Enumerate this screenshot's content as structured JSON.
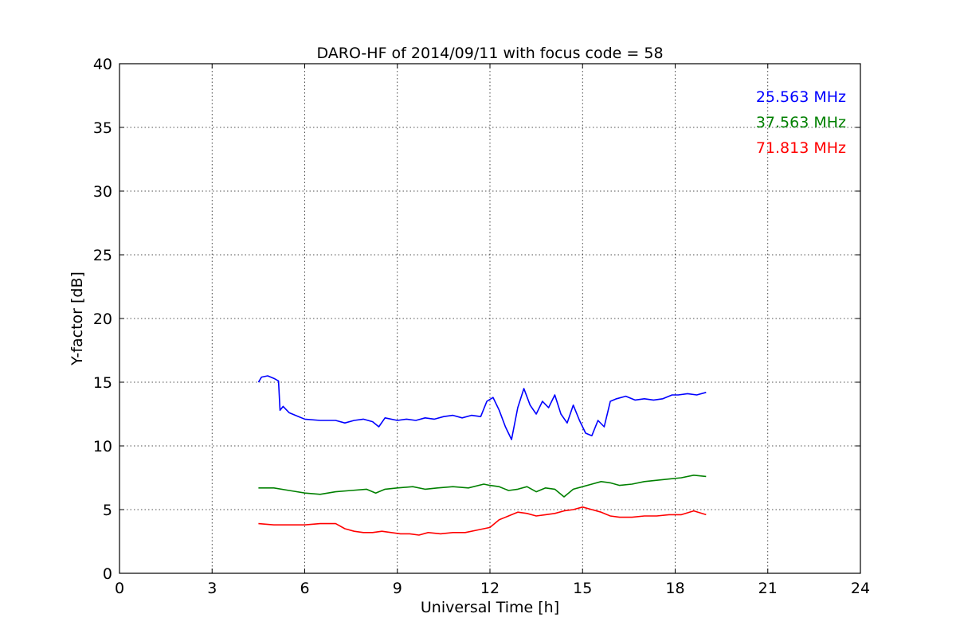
{
  "chart_data": {
    "type": "line",
    "title": "DARO-HF of 2014/09/11 with focus code = 58",
    "xlabel": "Universal Time [h]",
    "ylabel": "Y-factor [dB]",
    "xlim": [
      0,
      24
    ],
    "ylim": [
      0,
      40
    ],
    "xticks": [
      0,
      3,
      6,
      9,
      12,
      15,
      18,
      21,
      24
    ],
    "yticks": [
      0,
      5,
      10,
      15,
      20,
      25,
      30,
      35,
      40
    ],
    "grid": true,
    "legend_position": "top-right",
    "series": [
      {
        "name": "25.563 MHz",
        "color": "#0000ff",
        "x": [
          4.5,
          4.6,
          4.8,
          5.0,
          5.15,
          5.2,
          5.3,
          5.5,
          5.8,
          6.0,
          6.5,
          7.0,
          7.3,
          7.6,
          7.9,
          8.2,
          8.4,
          8.6,
          9.0,
          9.3,
          9.6,
          9.9,
          10.2,
          10.5,
          10.8,
          11.1,
          11.4,
          11.7,
          11.9,
          12.1,
          12.3,
          12.5,
          12.7,
          12.9,
          13.1,
          13.3,
          13.5,
          13.7,
          13.9,
          14.1,
          14.3,
          14.5,
          14.7,
          14.9,
          15.1,
          15.3,
          15.5,
          15.7,
          15.9,
          16.1,
          16.4,
          16.7,
          17.0,
          17.3,
          17.6,
          17.9,
          18.1,
          18.4,
          18.7,
          19.0
        ],
        "y": [
          15.0,
          15.4,
          15.5,
          15.3,
          15.1,
          12.8,
          13.1,
          12.6,
          12.3,
          12.1,
          12.0,
          12.0,
          11.8,
          12.0,
          12.1,
          11.9,
          11.5,
          12.2,
          12.0,
          12.1,
          12.0,
          12.2,
          12.1,
          12.3,
          12.4,
          12.2,
          12.4,
          12.3,
          13.5,
          13.8,
          12.8,
          11.5,
          10.5,
          13.0,
          14.5,
          13.2,
          12.5,
          13.5,
          13.0,
          14.0,
          12.5,
          11.8,
          13.2,
          12.0,
          11.0,
          10.8,
          12.0,
          11.5,
          13.5,
          13.7,
          13.9,
          13.6,
          13.7,
          13.6,
          13.7,
          14.0,
          14.0,
          14.1,
          14.0,
          14.2
        ]
      },
      {
        "name": "37.563 MHz",
        "color": "#008000",
        "x": [
          4.5,
          5.0,
          5.5,
          6.0,
          6.5,
          7.0,
          7.5,
          8.0,
          8.3,
          8.6,
          9.0,
          9.5,
          9.9,
          10.3,
          10.8,
          11.3,
          11.8,
          12.0,
          12.3,
          12.6,
          12.9,
          13.2,
          13.5,
          13.8,
          14.1,
          14.4,
          14.7,
          15.0,
          15.3,
          15.6,
          15.9,
          16.2,
          16.6,
          17.0,
          17.4,
          17.8,
          18.2,
          18.6,
          19.0
        ],
        "y": [
          6.7,
          6.7,
          6.5,
          6.3,
          6.2,
          6.4,
          6.5,
          6.6,
          6.3,
          6.6,
          6.7,
          6.8,
          6.6,
          6.7,
          6.8,
          6.7,
          7.0,
          6.9,
          6.8,
          6.5,
          6.6,
          6.8,
          6.4,
          6.7,
          6.6,
          6.0,
          6.6,
          6.8,
          7.0,
          7.2,
          7.1,
          6.9,
          7.0,
          7.2,
          7.3,
          7.4,
          7.5,
          7.7,
          7.6
        ]
      },
      {
        "name": "71.813 MHz",
        "color": "#ff0000",
        "x": [
          4.5,
          5.0,
          5.5,
          6.0,
          6.5,
          7.0,
          7.3,
          7.6,
          7.9,
          8.2,
          8.5,
          8.8,
          9.1,
          9.4,
          9.7,
          10.0,
          10.4,
          10.8,
          11.2,
          11.6,
          12.0,
          12.3,
          12.6,
          12.9,
          13.2,
          13.5,
          13.8,
          14.1,
          14.4,
          14.7,
          15.0,
          15.3,
          15.6,
          15.9,
          16.2,
          16.6,
          17.0,
          17.4,
          17.8,
          18.2,
          18.6,
          19.0
        ],
        "y": [
          3.9,
          3.8,
          3.8,
          3.8,
          3.9,
          3.9,
          3.5,
          3.3,
          3.2,
          3.2,
          3.3,
          3.2,
          3.1,
          3.1,
          3.0,
          3.2,
          3.1,
          3.2,
          3.2,
          3.4,
          3.6,
          4.2,
          4.5,
          4.8,
          4.7,
          4.5,
          4.6,
          4.7,
          4.9,
          5.0,
          5.2,
          5.0,
          4.8,
          4.5,
          4.4,
          4.4,
          4.5,
          4.5,
          4.6,
          4.6,
          4.9,
          4.6
        ]
      }
    ]
  }
}
